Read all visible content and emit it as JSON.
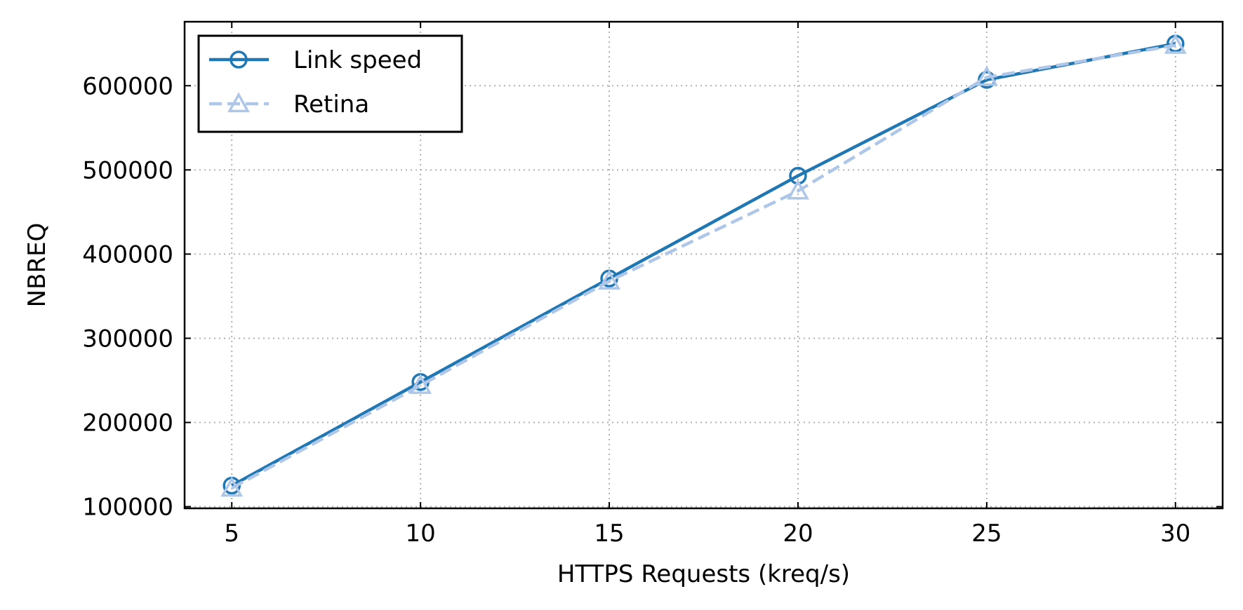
{
  "chart_data": {
    "type": "line",
    "xlabel": "HTTPS Requests (kreq/s)",
    "ylabel": "NBREQ",
    "x": [
      5,
      10,
      15,
      20,
      25,
      30
    ],
    "xlim": [
      3.75,
      31.25
    ],
    "ylim": [
      98000,
      676000
    ],
    "x_ticks": [
      5,
      10,
      15,
      20,
      25,
      30
    ],
    "y_ticks": [
      100000,
      200000,
      300000,
      400000,
      500000,
      600000
    ],
    "x_tick_labels": [
      "5",
      "10",
      "15",
      "20",
      "25",
      "30"
    ],
    "y_tick_labels": [
      "100000",
      "200000",
      "300000",
      "400000",
      "500000",
      "600000"
    ],
    "grid": true,
    "legend_position": "top-left",
    "series": [
      {
        "name": "Link speed",
        "values": [
          125000,
          248000,
          371000,
          493000,
          607000,
          650000
        ],
        "color": "#1f77b4",
        "line_style": "solid",
        "marker": "circle"
      },
      {
        "name": "Retina",
        "values": [
          122000,
          244000,
          368000,
          475000,
          610000,
          648000
        ],
        "color": "#aec7e8",
        "line_style": "dashed",
        "marker": "triangle"
      }
    ]
  }
}
